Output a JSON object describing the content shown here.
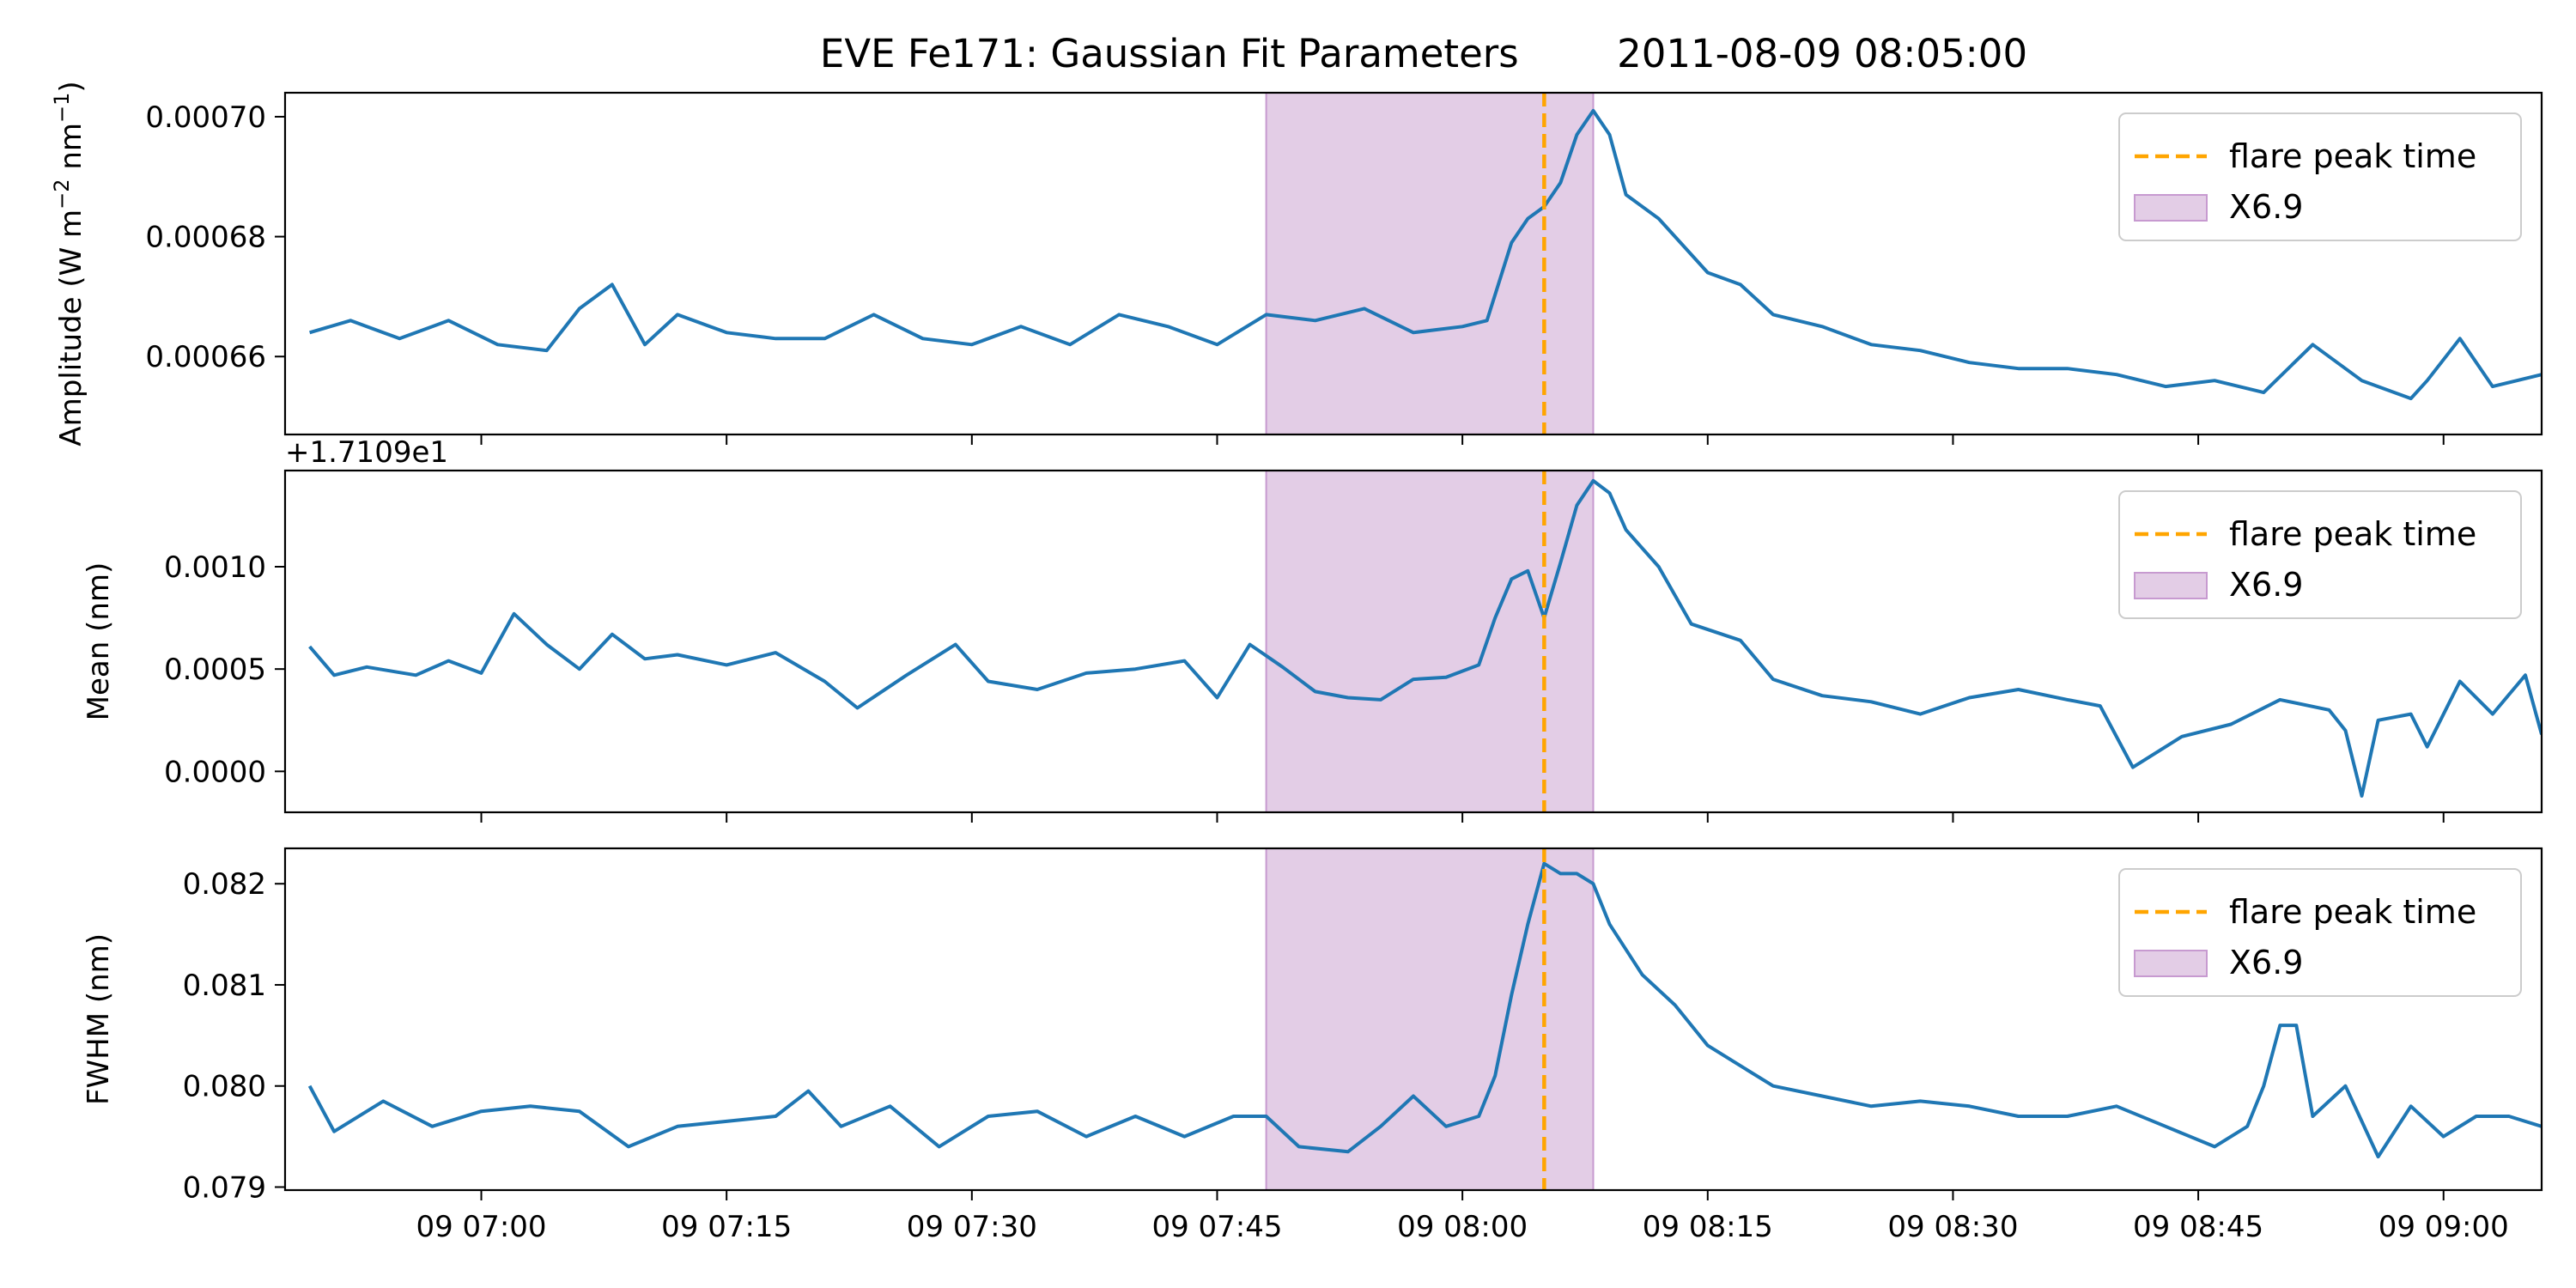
{
  "chart_data": {
    "type": "line",
    "title": "EVE Fe171: Gaussian Fit Parameters        2011-08-09 08:05:00",
    "x_tick_labels": [
      "09 07:00",
      "09 07:15",
      "09 07:30",
      "09 07:45",
      "09 08:00",
      "09 08:15",
      "09 08:30",
      "09 08:45",
      "09 09:00"
    ],
    "x_tick_minutes": [
      420,
      435,
      450,
      465,
      480,
      495,
      510,
      525,
      540
    ],
    "xlim_minutes": [
      408,
      546
    ],
    "flare": {
      "peak_minute": 485,
      "span_minutes": [
        468,
        488
      ],
      "peak_label": "flare peak time",
      "span_label": "X6.9",
      "peak_color": "#ffa500",
      "span_color": "#e3cde6",
      "span_edge_color": "#c79ad0"
    },
    "line_color": "#1f77b4",
    "panels": [
      {
        "ylabel": "Amplitude (W m",
        "ylabel_sup1": "−2",
        "ylabel_mid": " nm",
        "ylabel_sup2": "−1",
        "ylabel_end": ")",
        "ylim": [
          0.000647,
          0.000704
        ],
        "yticks": [
          0.00066,
          0.00068,
          0.0007
        ],
        "ytick_labels": [
          "0.00066",
          "0.00068",
          "0.00070"
        ],
        "offset_label": "",
        "series": [
          [
            409.5,
            0.000664
          ],
          [
            412,
            0.000666
          ],
          [
            415,
            0.000663
          ],
          [
            418,
            0.000666
          ],
          [
            421,
            0.000662
          ],
          [
            424,
            0.000661
          ],
          [
            426,
            0.000668
          ],
          [
            428,
            0.000672
          ],
          [
            430,
            0.000662
          ],
          [
            432,
            0.000667
          ],
          [
            435,
            0.000664
          ],
          [
            438,
            0.000663
          ],
          [
            441,
            0.000663
          ],
          [
            444,
            0.000667
          ],
          [
            447,
            0.000663
          ],
          [
            450,
            0.000662
          ],
          [
            453,
            0.000665
          ],
          [
            456,
            0.000662
          ],
          [
            459,
            0.000667
          ],
          [
            462,
            0.000665
          ],
          [
            465,
            0.000662
          ],
          [
            468,
            0.000667
          ],
          [
            471,
            0.000666
          ],
          [
            474,
            0.000668
          ],
          [
            477,
            0.000664
          ],
          [
            480,
            0.000665
          ],
          [
            481.5,
            0.000666
          ],
          [
            483,
            0.000679
          ],
          [
            484,
            0.000683
          ],
          [
            485,
            0.000685
          ],
          [
            486,
            0.000689
          ],
          [
            487,
            0.000697
          ],
          [
            488,
            0.000701
          ],
          [
            489,
            0.000697
          ],
          [
            490,
            0.000687
          ],
          [
            492,
            0.000683
          ],
          [
            495,
            0.000674
          ],
          [
            497,
            0.000672
          ],
          [
            499,
            0.000667
          ],
          [
            502,
            0.000665
          ],
          [
            505,
            0.000662
          ],
          [
            508,
            0.000661
          ],
          [
            511,
            0.000659
          ],
          [
            514,
            0.000658
          ],
          [
            517,
            0.000658
          ],
          [
            520,
            0.000657
          ],
          [
            523,
            0.000655
          ],
          [
            526,
            0.000656
          ],
          [
            529,
            0.000654
          ],
          [
            532,
            0.000662
          ],
          [
            535,
            0.000656
          ],
          [
            538,
            0.000653
          ],
          [
            539,
            0.000656
          ],
          [
            541,
            0.000663
          ],
          [
            543,
            0.000655
          ],
          [
            546,
            0.000657
          ]
        ]
      },
      {
        "ylabel": "Mean (nm)",
        "ylim": [
          -0.0002,
          0.00147
        ],
        "yticks": [
          0.0,
          0.0005,
          0.001
        ],
        "ytick_labels": [
          "0.0000",
          "0.0005",
          "0.0010"
        ],
        "offset_label": "+1.7109e1",
        "series": [
          [
            409.5,
            0.00061
          ],
          [
            411,
            0.00047
          ],
          [
            413,
            0.00051
          ],
          [
            416,
            0.00047
          ],
          [
            418,
            0.00054
          ],
          [
            420,
            0.00048
          ],
          [
            422,
            0.00077
          ],
          [
            424,
            0.00062
          ],
          [
            426,
            0.0005
          ],
          [
            428,
            0.00067
          ],
          [
            430,
            0.00055
          ],
          [
            432,
            0.00057
          ],
          [
            435,
            0.00052
          ],
          [
            438,
            0.00058
          ],
          [
            441,
            0.00044
          ],
          [
            443,
            0.00031
          ],
          [
            446,
            0.00047
          ],
          [
            449,
            0.00062
          ],
          [
            451,
            0.00044
          ],
          [
            454,
            0.0004
          ],
          [
            457,
            0.00048
          ],
          [
            460,
            0.0005
          ],
          [
            463,
            0.00054
          ],
          [
            465,
            0.00036
          ],
          [
            467,
            0.00062
          ],
          [
            469,
            0.00051
          ],
          [
            471,
            0.00039
          ],
          [
            473,
            0.00036
          ],
          [
            475,
            0.00035
          ],
          [
            477,
            0.00045
          ],
          [
            479,
            0.00046
          ],
          [
            481,
            0.00052
          ],
          [
            482,
            0.00075
          ],
          [
            483,
            0.00094
          ],
          [
            484,
            0.00098
          ],
          [
            485,
            0.00075
          ],
          [
            486,
            0.00102
          ],
          [
            487,
            0.0013
          ],
          [
            488,
            0.00142
          ],
          [
            489,
            0.00136
          ],
          [
            490,
            0.00118
          ],
          [
            492,
            0.001
          ],
          [
            494,
            0.00072
          ],
          [
            497,
            0.00064
          ],
          [
            499,
            0.00045
          ],
          [
            502,
            0.00037
          ],
          [
            505,
            0.00034
          ],
          [
            508,
            0.00028
          ],
          [
            511,
            0.00036
          ],
          [
            514,
            0.0004
          ],
          [
            517,
            0.00035
          ],
          [
            519,
            0.00032
          ],
          [
            521,
            2e-05
          ],
          [
            524,
            0.00017
          ],
          [
            527,
            0.00023
          ],
          [
            530,
            0.00035
          ],
          [
            533,
            0.0003
          ],
          [
            534,
            0.0002
          ],
          [
            535,
            -0.00012
          ],
          [
            536,
            0.00025
          ],
          [
            538,
            0.00028
          ],
          [
            539,
            0.00012
          ],
          [
            541,
            0.00044
          ],
          [
            543,
            0.00028
          ],
          [
            545,
            0.00047
          ],
          [
            546,
            0.00018
          ]
        ]
      },
      {
        "ylabel": "FWHM (nm)",
        "ylim": [
          0.07897,
          0.08235
        ],
        "yticks": [
          0.079,
          0.08,
          0.081,
          0.082
        ],
        "ytick_labels": [
          "0.079",
          "0.080",
          "0.081",
          "0.082"
        ],
        "offset_label": "",
        "series": [
          [
            409.5,
            0.08
          ],
          [
            411,
            0.07955
          ],
          [
            414,
            0.07985
          ],
          [
            417,
            0.0796
          ],
          [
            420,
            0.07975
          ],
          [
            423,
            0.0798
          ],
          [
            426,
            0.07975
          ],
          [
            429,
            0.0794
          ],
          [
            432,
            0.0796
          ],
          [
            435,
            0.07965
          ],
          [
            438,
            0.0797
          ],
          [
            440,
            0.07995
          ],
          [
            442,
            0.0796
          ],
          [
            445,
            0.0798
          ],
          [
            448,
            0.0794
          ],
          [
            451,
            0.0797
          ],
          [
            454,
            0.07975
          ],
          [
            457,
            0.0795
          ],
          [
            460,
            0.0797
          ],
          [
            463,
            0.0795
          ],
          [
            466,
            0.0797
          ],
          [
            468,
            0.0797
          ],
          [
            470,
            0.0794
          ],
          [
            473,
            0.07935
          ],
          [
            475,
            0.0796
          ],
          [
            477,
            0.0799
          ],
          [
            479,
            0.0796
          ],
          [
            481,
            0.0797
          ],
          [
            482,
            0.0801
          ],
          [
            483,
            0.0809
          ],
          [
            484,
            0.0816
          ],
          [
            485,
            0.0822
          ],
          [
            486,
            0.0821
          ],
          [
            487,
            0.0821
          ],
          [
            488,
            0.082
          ],
          [
            489,
            0.0816
          ],
          [
            491,
            0.0811
          ],
          [
            493,
            0.0808
          ],
          [
            495,
            0.0804
          ],
          [
            497,
            0.0802
          ],
          [
            499,
            0.08
          ],
          [
            502,
            0.0799
          ],
          [
            505,
            0.0798
          ],
          [
            508,
            0.07985
          ],
          [
            511,
            0.0798
          ],
          [
            514,
            0.0797
          ],
          [
            517,
            0.0797
          ],
          [
            520,
            0.0798
          ],
          [
            523,
            0.0796
          ],
          [
            526,
            0.0794
          ],
          [
            528,
            0.0796
          ],
          [
            529,
            0.08
          ],
          [
            530,
            0.0806
          ],
          [
            531,
            0.0806
          ],
          [
            532,
            0.0797
          ],
          [
            534,
            0.08
          ],
          [
            536,
            0.0793
          ],
          [
            538,
            0.0798
          ],
          [
            540,
            0.0795
          ],
          [
            542,
            0.0797
          ],
          [
            544,
            0.0797
          ],
          [
            546,
            0.0796
          ]
        ]
      }
    ]
  }
}
